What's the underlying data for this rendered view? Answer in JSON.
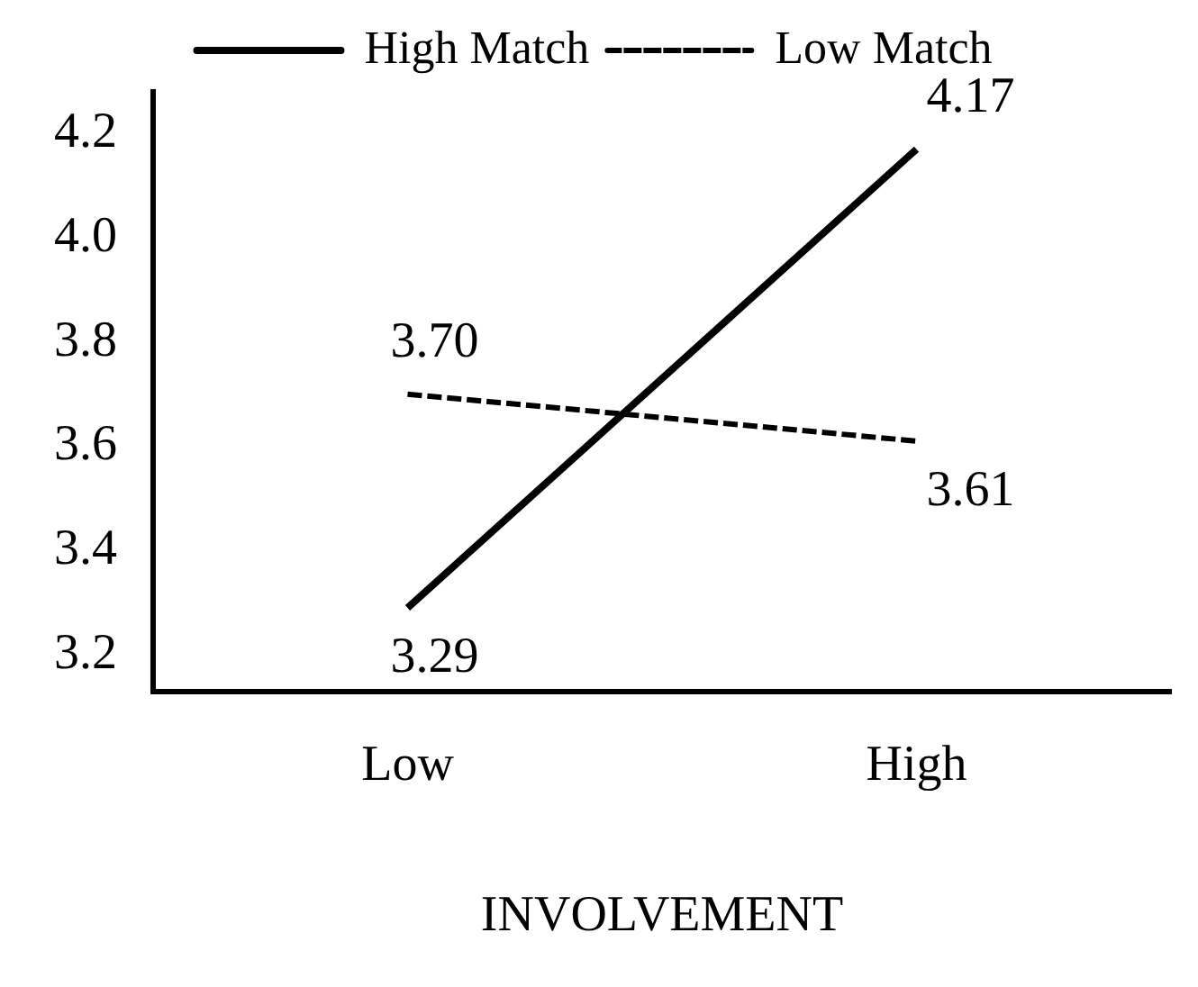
{
  "chart_data": {
    "type": "line",
    "xlabel": "INVOLVEMENT",
    "categories": [
      "Low",
      "High"
    ],
    "series": [
      {
        "name": "High Match",
        "color": "#000000",
        "line_style": "solid",
        "values": [
          3.29,
          4.17
        ],
        "value_labels": [
          "3.29",
          "4.17"
        ]
      },
      {
        "name": "Low Match",
        "color": "#000000",
        "line_style": "dashed",
        "values": [
          3.7,
          3.61
        ],
        "value_labels": [
          "3.70",
          "3.61"
        ]
      }
    ],
    "ylim": [
      3.13,
      4.28
    ],
    "yticks": [
      3.2,
      3.4,
      3.6,
      3.8,
      {
        "value": 4,
        "label": "4.0"
      },
      4.2
    ],
    "grid": false,
    "legend": "top",
    "marker": "none"
  }
}
